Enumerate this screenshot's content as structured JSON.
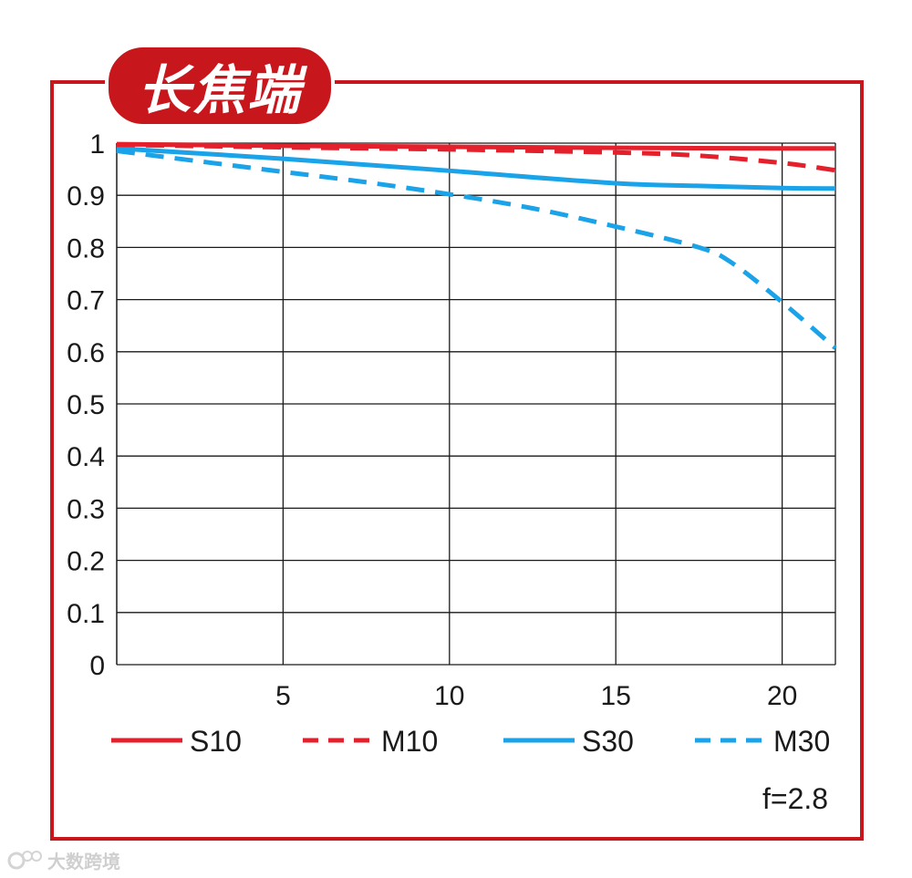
{
  "badge": {
    "title": "长焦端"
  },
  "aperture_label": "f=2.8",
  "watermark": {
    "text": "大数跨境"
  },
  "colors": {
    "frame": "#c8161d",
    "red_series": "#e3202b",
    "blue_series": "#1aa3e8",
    "grid": "#1a1a1a"
  },
  "chart_data": {
    "type": "line",
    "title": "",
    "xlabel": "",
    "ylabel": "",
    "xlim": [
      0,
      21.6
    ],
    "ylim": [
      0,
      1
    ],
    "x_ticks": [
      "5",
      "10",
      "15",
      "20"
    ],
    "y_ticks": [
      "0",
      "0.1",
      "0.2",
      "0.3",
      "0.4",
      "0.5",
      "0.6",
      "0.7",
      "0.8",
      "0.9",
      "1"
    ],
    "grid": true,
    "legend_position": "bottom",
    "series": [
      {
        "name": "S10",
        "color": "#e3202b",
        "dash": "solid",
        "x": [
          0,
          5,
          10,
          15,
          20,
          21.6
        ],
        "y": [
          0.998,
          0.995,
          0.993,
          0.991,
          0.99,
          0.99
        ]
      },
      {
        "name": "M10",
        "color": "#e3202b",
        "dash": "dashed",
        "x": [
          0,
          5,
          10,
          15,
          17.5,
          20,
          21.6
        ],
        "y": [
          0.997,
          0.992,
          0.988,
          0.982,
          0.976,
          0.962,
          0.948
        ]
      },
      {
        "name": "S30",
        "color": "#1aa3e8",
        "dash": "solid",
        "x": [
          0,
          5,
          10,
          15,
          17.5,
          20,
          21.6
        ],
        "y": [
          0.99,
          0.97,
          0.947,
          0.923,
          0.918,
          0.914,
          0.913
        ]
      },
      {
        "name": "M30",
        "color": "#1aa3e8",
        "dash": "dashed",
        "x": [
          0,
          2.5,
          5,
          7.5,
          10,
          12.5,
          15,
          17.5,
          18.5,
          20,
          21.6
        ],
        "y": [
          0.985,
          0.965,
          0.945,
          0.925,
          0.902,
          0.875,
          0.84,
          0.8,
          0.77,
          0.695,
          0.607
        ]
      }
    ]
  }
}
